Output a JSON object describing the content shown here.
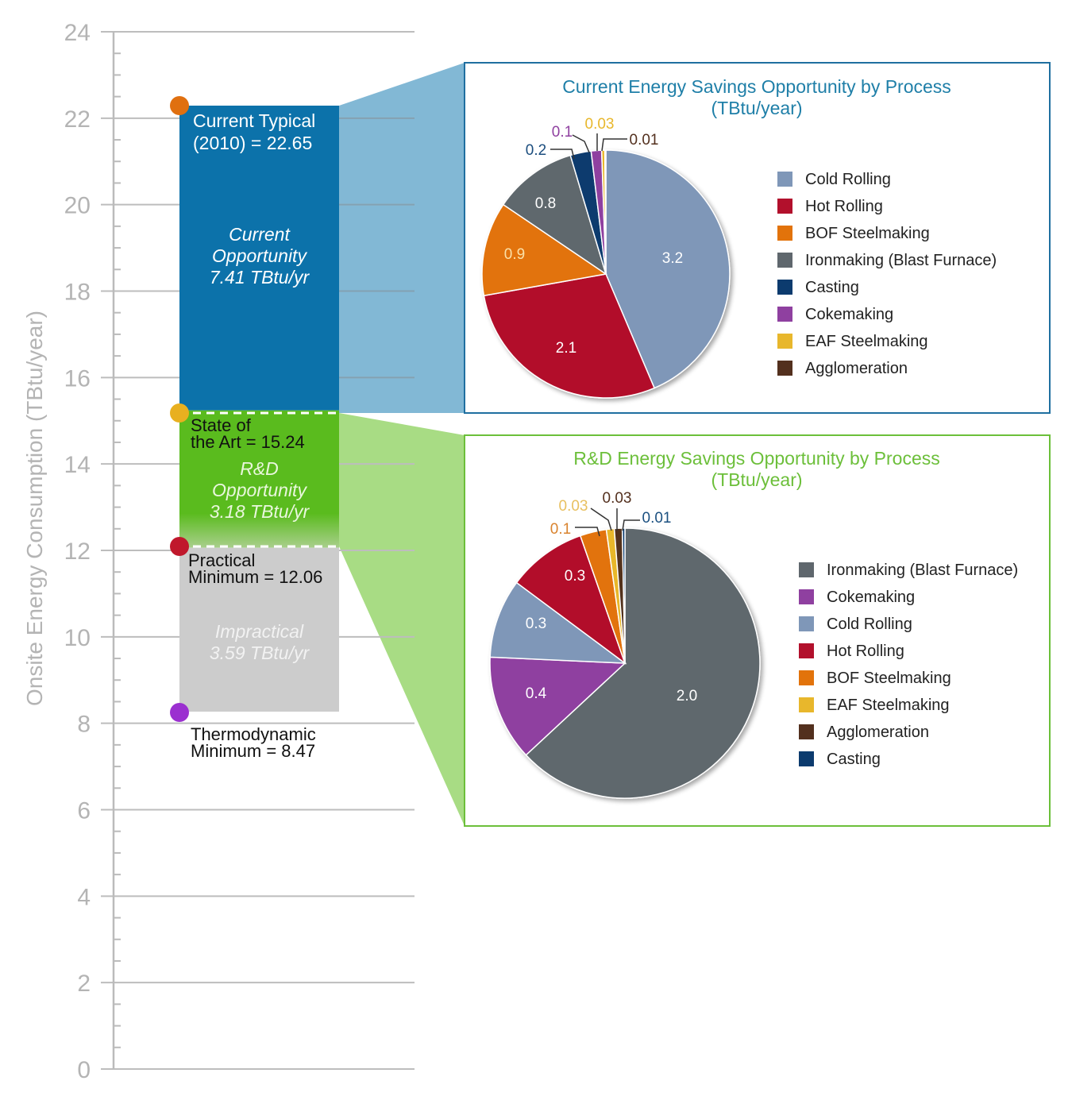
{
  "chart_data": [
    {
      "type": "bar",
      "title": "",
      "ylabel": "Onsite Energy Consumption (TBtu/year)",
      "xlabel": "",
      "ylim": [
        0,
        24
      ],
      "yticks": [
        0,
        2,
        4,
        6,
        8,
        10,
        12,
        14,
        16,
        18,
        20,
        22,
        24
      ],
      "grid": true,
      "levels": [
        {
          "name": "Current Typical (2010)",
          "value": 22.65,
          "label_lines": [
            "Current Typical",
            "(2010) = 22.65"
          ],
          "color": "#e07010"
        },
        {
          "name": "State of the Art",
          "value": 15.24,
          "label_lines": [
            "State of",
            "the Art = 15.24"
          ],
          "color": "#e8b020"
        },
        {
          "name": "Practical Minimum",
          "value": 12.06,
          "label_lines": [
            "Practical",
            "Minimum = 12.06"
          ],
          "color": "#c0182c"
        },
        {
          "name": "Thermodynamic Minimum",
          "value": 8.47,
          "label_lines": [
            "Thermodynamic",
            "Minimum = 8.47"
          ],
          "color": "#9b30d0"
        }
      ],
      "bands": [
        {
          "name": "Current Opportunity",
          "from": 15.24,
          "to": 22.65,
          "value": 7.41,
          "label_lines": [
            "Current",
            "Opportunity",
            "7.41 TBtu/yr"
          ],
          "color": "#0c72aa"
        },
        {
          "name": "R&D Opportunity",
          "from": 12.06,
          "to": 15.24,
          "value": 3.18,
          "label_lines": [
            "R&D",
            "Opportunity",
            "3.18 TBtu/yr"
          ],
          "color": "#5abb1e"
        },
        {
          "name": "Impractical",
          "from": 8.47,
          "to": 12.06,
          "value": 3.59,
          "label_lines": [
            "Impractical",
            "3.59 TBtu/yr"
          ],
          "color": "#cccccc"
        }
      ]
    },
    {
      "type": "pie",
      "title_lines": [
        "Current Energy Savings Opportunity by Process",
        "(TBtu/year)"
      ],
      "title_color": "#1f7fa8",
      "frame_color": "#1f6fa0",
      "legend_position": "right",
      "slices": [
        {
          "label": "Cold Rolling",
          "value": 3.2,
          "color": "#7f97b8"
        },
        {
          "label": "Hot Rolling",
          "value": 2.1,
          "color": "#b2102c"
        },
        {
          "label": "BOF Steelmaking",
          "value": 0.9,
          "color": "#e2730b"
        },
        {
          "label": "Ironmaking (Blast Furnace)",
          "value": 0.8,
          "color": "#5f676d"
        },
        {
          "label": "Casting",
          "value": 0.2,
          "color": "#0c3b6e"
        },
        {
          "label": "Cokemaking",
          "value": 0.1,
          "color": "#8f40a0"
        },
        {
          "label": "EAF Steelmaking",
          "value": 0.03,
          "color": "#e8b72c"
        },
        {
          "label": "Agglomeration",
          "value": 0.01,
          "color": "#53301e"
        }
      ],
      "slice_order": [
        "Cold Rolling",
        "Hot Rolling",
        "BOF Steelmaking",
        "Ironmaking (Blast Furnace)",
        "Casting",
        "Cokemaking",
        "EAF Steelmaking",
        "Agglomeration"
      ],
      "data_labels": [
        "3.2",
        "2.1",
        "0.9",
        "0.8",
        "0.2",
        "0.1",
        "0.03",
        "0.01"
      ]
    },
    {
      "type": "pie",
      "title_lines": [
        "R&D Energy Savings Opportunity by Process",
        "(TBtu/year)"
      ],
      "title_color": "#6cbf3a",
      "frame_color": "#6cbf3a",
      "legend_position": "right",
      "slices": [
        {
          "label": "Ironmaking (Blast Furnace)",
          "value": 2.0,
          "color": "#5f676d"
        },
        {
          "label": "Cokemaking",
          "value": 0.4,
          "color": "#8f40a0"
        },
        {
          "label": "Cold Rolling",
          "value": 0.3,
          "color": "#7f97b8"
        },
        {
          "label": "Hot Rolling",
          "value": 0.3,
          "color": "#b2102c"
        },
        {
          "label": "BOF Steelmaking",
          "value": 0.1,
          "color": "#e2730b"
        },
        {
          "label": "EAF Steelmaking",
          "value": 0.03,
          "color": "#e8b72c"
        },
        {
          "label": "Agglomeration",
          "value": 0.03,
          "color": "#53301e"
        },
        {
          "label": "Casting",
          "value": 0.01,
          "color": "#0c3b6e"
        }
      ],
      "data_labels": [
        "2.0",
        "0.4",
        "0.3",
        "0.3",
        "0.1",
        "0.03",
        "0.03",
        "0.01"
      ]
    }
  ]
}
